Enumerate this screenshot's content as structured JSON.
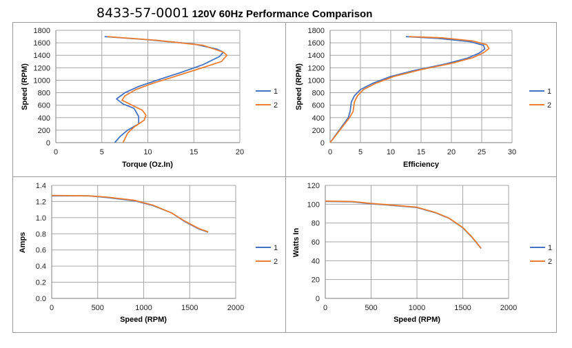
{
  "header": {
    "part_number": "8433-57-0001",
    "title": "120V 60Hz Performance Comparison"
  },
  "colors": {
    "series1": "#4472c4",
    "series2": "#ed7d31",
    "grid": "#a6a6a6"
  },
  "chart_data": [
    {
      "type": "line",
      "xlabel": "Torque (Oz.In)",
      "ylabel": "Speed (RPM)",
      "xlim": [
        0,
        20
      ],
      "ylim": [
        0,
        1800
      ],
      "xticks": [
        0,
        5,
        10,
        15,
        20
      ],
      "yticks": [
        0,
        200,
        400,
        600,
        800,
        1000,
        1200,
        1400,
        1600,
        1800
      ],
      "grid": true,
      "legend": "right",
      "series": [
        {
          "name": "1",
          "points": [
            [
              5.3,
              1700
            ],
            [
              10,
              1650
            ],
            [
              15,
              1580
            ],
            [
              17.5,
              1500
            ],
            [
              18.2,
              1450
            ],
            [
              17.8,
              1380
            ],
            [
              16,
              1250
            ],
            [
              13.5,
              1120
            ],
            [
              11,
              1000
            ],
            [
              9,
              900
            ],
            [
              7.5,
              800
            ],
            [
              6.6,
              700
            ],
            [
              7.3,
              620
            ],
            [
              8.5,
              550
            ],
            [
              9,
              420
            ],
            [
              9,
              300
            ],
            [
              7.8,
              200
            ],
            [
              7,
              100
            ],
            [
              6.4,
              0
            ]
          ]
        },
        {
          "name": "2",
          "points": [
            [
              5.6,
              1700
            ],
            [
              11,
              1640
            ],
            [
              16,
              1560
            ],
            [
              18.2,
              1450
            ],
            [
              18.6,
              1400
            ],
            [
              18,
              1300
            ],
            [
              15.5,
              1180
            ],
            [
              12.5,
              1040
            ],
            [
              10.5,
              950
            ],
            [
              8.7,
              850
            ],
            [
              7.5,
              750
            ],
            [
              7.2,
              680
            ],
            [
              8.3,
              600
            ],
            [
              9.4,
              520
            ],
            [
              9.8,
              440
            ],
            [
              9.6,
              360
            ],
            [
              8.5,
              250
            ],
            [
              7.8,
              150
            ],
            [
              7.3,
              0
            ]
          ]
        }
      ]
    },
    {
      "type": "line",
      "xlabel": "Efficiency",
      "ylabel": "Speed (RPM)",
      "xlim": [
        0,
        30
      ],
      "ylim": [
        0,
        1800
      ],
      "xticks": [
        0,
        5,
        10,
        15,
        20,
        25,
        30
      ],
      "yticks": [
        0,
        200,
        400,
        600,
        800,
        1000,
        1200,
        1400,
        1600,
        1800
      ],
      "grid": true,
      "legend": "right",
      "series": [
        {
          "name": "1",
          "points": [
            [
              0,
              0
            ],
            [
              1.5,
              200
            ],
            [
              3,
              400
            ],
            [
              3.3,
              500
            ],
            [
              3.5,
              650
            ],
            [
              4,
              750
            ],
            [
              5,
              850
            ],
            [
              7,
              950
            ],
            [
              10,
              1060
            ],
            [
              14,
              1160
            ],
            [
              19,
              1260
            ],
            [
              22.5,
              1350
            ],
            [
              24.5,
              1430
            ],
            [
              25.5,
              1500
            ],
            [
              25.3,
              1560
            ],
            [
              23,
              1620
            ],
            [
              18,
              1670
            ],
            [
              12.5,
              1700
            ]
          ]
        },
        {
          "name": "2",
          "points": [
            [
              0,
              0
            ],
            [
              1.6,
              200
            ],
            [
              3.2,
              400
            ],
            [
              3.8,
              500
            ],
            [
              4,
              650
            ],
            [
              4.5,
              750
            ],
            [
              5.5,
              850
            ],
            [
              7.5,
              950
            ],
            [
              10.5,
              1060
            ],
            [
              15,
              1170
            ],
            [
              20,
              1270
            ],
            [
              23.5,
              1360
            ],
            [
              25.3,
              1440
            ],
            [
              26.2,
              1510
            ],
            [
              25.8,
              1570
            ],
            [
              23.5,
              1630
            ],
            [
              18.5,
              1680
            ],
            [
              13,
              1700
            ]
          ]
        }
      ]
    },
    {
      "type": "line",
      "xlabel": "Speed (RPM)",
      "ylabel": "Amps",
      "xlim": [
        0,
        2000
      ],
      "ylim": [
        0,
        1.4
      ],
      "xticks": [
        0,
        500,
        1000,
        1500,
        2000
      ],
      "yticks": [
        0.0,
        0.2,
        0.4,
        0.6,
        0.8,
        1.0,
        1.2,
        1.4
      ],
      "ytick_labels": [
        "0.0",
        "0.2",
        "0.4",
        "0.6",
        "0.8",
        "1.0",
        "1.2",
        "1.4"
      ],
      "grid": true,
      "legend": "right",
      "series": [
        {
          "name": "1",
          "points": [
            [
              0,
              1.27
            ],
            [
              400,
              1.27
            ],
            [
              600,
              1.25
            ],
            [
              900,
              1.21
            ],
            [
              1100,
              1.15
            ],
            [
              1300,
              1.06
            ],
            [
              1450,
              0.95
            ],
            [
              1600,
              0.86
            ],
            [
              1700,
              0.82
            ]
          ]
        },
        {
          "name": "2",
          "points": [
            [
              0,
              1.275
            ],
            [
              400,
              1.27
            ],
            [
              600,
              1.255
            ],
            [
              900,
              1.215
            ],
            [
              1100,
              1.155
            ],
            [
              1300,
              1.06
            ],
            [
              1450,
              0.955
            ],
            [
              1600,
              0.865
            ],
            [
              1700,
              0.825
            ]
          ]
        }
      ]
    },
    {
      "type": "line",
      "xlabel": "Speed (RPM)",
      "ylabel": "Watts In",
      "xlim": [
        0,
        2000
      ],
      "ylim": [
        0,
        120
      ],
      "xticks": [
        0,
        500,
        1000,
        1500,
        2000
      ],
      "yticks": [
        0,
        20,
        40,
        60,
        80,
        100,
        120
      ],
      "grid": true,
      "legend": "right",
      "series": [
        {
          "name": "1",
          "points": [
            [
              0,
              103
            ],
            [
              300,
              102.5
            ],
            [
              500,
              100.5
            ],
            [
              700,
              99
            ],
            [
              1000,
              96.5
            ],
            [
              1200,
              91
            ],
            [
              1350,
              85
            ],
            [
              1500,
              75
            ],
            [
              1600,
              65
            ],
            [
              1700,
              53
            ]
          ]
        },
        {
          "name": "2",
          "points": [
            [
              0,
              103.3
            ],
            [
              300,
              102.8
            ],
            [
              500,
              100.8
            ],
            [
              700,
              99.3
            ],
            [
              1000,
              96.8
            ],
            [
              1200,
              91.3
            ],
            [
              1350,
              85.2
            ],
            [
              1500,
              75.3
            ],
            [
              1600,
              65.3
            ],
            [
              1700,
              53.3
            ]
          ]
        }
      ]
    }
  ]
}
